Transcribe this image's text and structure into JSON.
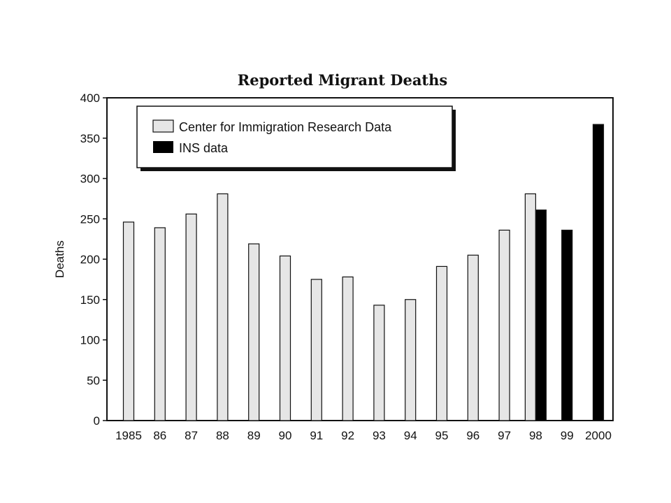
{
  "chart_data": {
    "type": "bar",
    "title": "Reported Migrant Deaths",
    "xlabel": "",
    "ylabel": "Deaths",
    "ylim": [
      0,
      400
    ],
    "yticks": [
      0,
      50,
      100,
      150,
      200,
      250,
      300,
      350,
      400
    ],
    "categories": [
      "1985",
      "86",
      "87",
      "88",
      "89",
      "90",
      "91",
      "92",
      "93",
      "94",
      "95",
      "96",
      "97",
      "98",
      "99",
      "2000"
    ],
    "series": [
      {
        "name": "Center for Immigration Research Data",
        "color": "#e6e6e6",
        "values": [
          246,
          239,
          256,
          281,
          219,
          204,
          175,
          178,
          143,
          150,
          191,
          205,
          236,
          281,
          null,
          null
        ]
      },
      {
        "name": "INS data",
        "color": "#000000",
        "values": [
          null,
          null,
          null,
          null,
          null,
          null,
          null,
          null,
          null,
          null,
          null,
          null,
          null,
          261,
          236,
          367
        ]
      }
    ],
    "grid": false,
    "legend_position": "top-left"
  }
}
